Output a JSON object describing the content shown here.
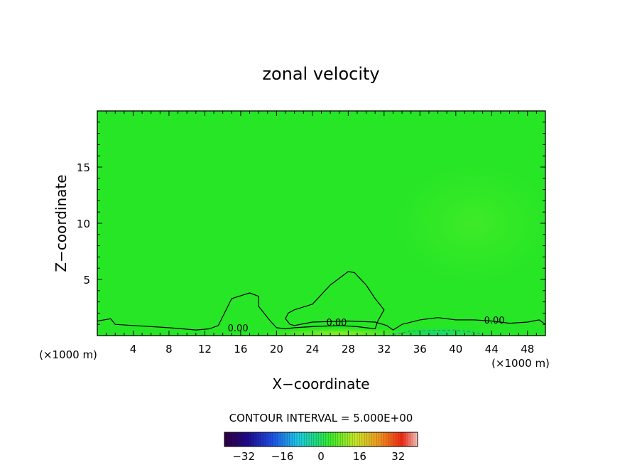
{
  "chart_data": {
    "type": "heatmap",
    "title": "zonal velocity",
    "xlabel": "X−coordinate",
    "ylabel": "Z−coordinate",
    "x_unit_left": "(×1000 m)",
    "x_unit_right": "(×1000 m)",
    "xlim": [
      0,
      50
    ],
    "ylim": [
      0,
      20
    ],
    "x_ticks": [
      4,
      8,
      12,
      16,
      20,
      24,
      28,
      32,
      36,
      40,
      44,
      48
    ],
    "y_ticks": [
      5,
      10,
      15
    ],
    "contour_labels": [
      {
        "text": "0.00",
        "x": 15.7,
        "y": 0.7
      },
      {
        "text": "0.00",
        "x": 26.7,
        "y": 1.2
      },
      {
        "text": "0.00",
        "x": 44.3,
        "y": 1.4
      }
    ],
    "contour_zero_line": [
      [
        [
          0,
          1.3
        ],
        [
          1.5,
          1.5
        ],
        [
          2,
          1.0
        ],
        [
          4,
          0.9
        ],
        [
          8,
          0.7
        ],
        [
          11,
          0.5
        ],
        [
          12.5,
          0.6
        ],
        [
          13.5,
          0.9
        ],
        [
          14,
          1.7
        ],
        [
          15,
          3.3
        ],
        [
          17,
          3.8
        ],
        [
          18,
          3.5
        ],
        [
          18,
          2.6
        ],
        [
          19.3,
          1.3
        ],
        [
          20,
          0.7
        ],
        [
          21,
          0.6
        ],
        [
          22,
          0.7
        ],
        [
          24,
          0.8
        ],
        [
          27,
          0.9
        ],
        [
          29,
          0.8
        ],
        [
          31,
          0.6
        ],
        [
          31.3,
          1.3
        ],
        [
          32,
          2.3
        ],
        [
          31,
          3.3
        ],
        [
          30,
          4.5
        ],
        [
          28.7,
          5.6
        ],
        [
          28,
          5.7
        ],
        [
          26,
          4.5
        ],
        [
          24,
          2.8
        ],
        [
          22,
          2.3
        ],
        [
          21.3,
          2.0
        ],
        [
          21,
          1.5
        ],
        [
          21.5,
          1.0
        ],
        [
          22,
          0.9
        ],
        [
          24,
          1.2
        ],
        [
          28,
          1.3
        ],
        [
          31,
          1.2
        ],
        [
          32.3,
          0.9
        ],
        [
          33,
          0.5
        ],
        [
          34,
          1.0
        ],
        [
          36,
          1.4
        ],
        [
          38,
          1.6
        ],
        [
          40,
          1.4
        ],
        [
          42,
          1.4
        ],
        [
          44,
          1.3
        ],
        [
          46,
          1.1
        ],
        [
          48,
          1.2
        ],
        [
          49.3,
          1.4
        ],
        [
          50,
          1.0
        ]
      ]
    ],
    "contour_dashed_line": [
      [
        [
          33,
          0.1
        ],
        [
          35,
          0.4
        ],
        [
          40,
          0.5
        ],
        [
          42,
          0.3
        ],
        [
          43,
          0.1
        ]
      ]
    ],
    "field_regions": [
      {
        "cx": 27,
        "cy": 0.2,
        "rx": 9,
        "ry": 0.5,
        "value": 2
      },
      {
        "cx": 38,
        "cy": 0.2,
        "rx": 6,
        "ry": 0.6,
        "value": -3
      },
      {
        "cx": 42,
        "cy": 10,
        "rx": 10,
        "ry": 6,
        "value": 1
      }
    ],
    "colorbar": {
      "title": "CONTOUR INTERVAL = 5.000E+00",
      "min": -40,
      "max": 40,
      "tick_labels": [
        "−32",
        "−16",
        "0",
        "16",
        "32"
      ],
      "tick_values": [
        -32,
        -16,
        0,
        16,
        32
      ]
    },
    "colors": {
      "background_field": "#26e626",
      "contour_line": "#000000"
    }
  }
}
